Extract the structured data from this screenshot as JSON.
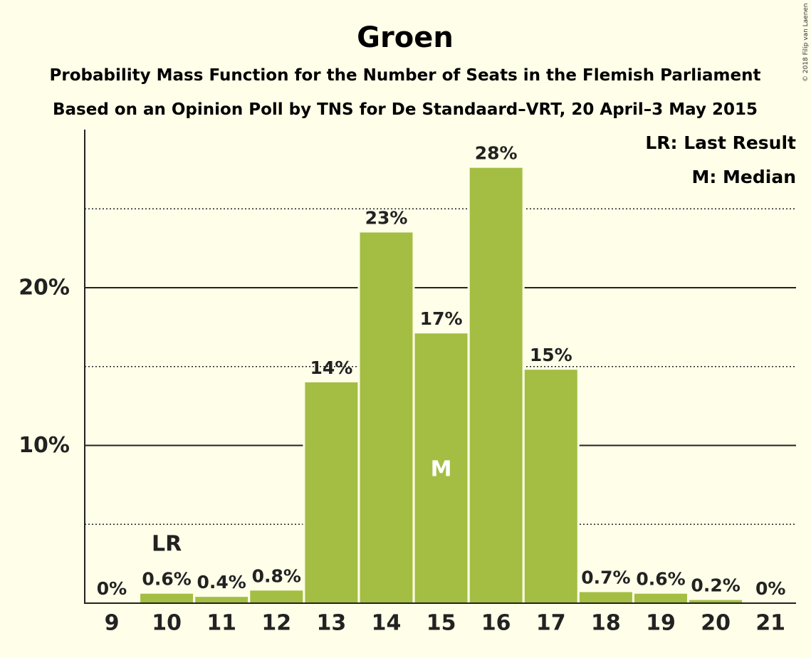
{
  "colors": {
    "background": "#FFFEE8",
    "bar": "#A3BE43",
    "text": "#222222",
    "marker_inside": "#FFFFFF"
  },
  "copyright": "© 2018 Filip van Laenen",
  "chart_data": {
    "type": "bar",
    "title": "Groen",
    "subtitle_lines": [
      "Probability Mass Function for the Number of Seats in the Flemish Parliament",
      "Based on an Opinion Poll by TNS for De Standaard–VRT, 20 April–3 May 2015"
    ],
    "categories": [
      "9",
      "10",
      "11",
      "12",
      "13",
      "14",
      "15",
      "16",
      "17",
      "18",
      "19",
      "20",
      "21"
    ],
    "values": [
      0,
      0.6,
      0.4,
      0.8,
      14,
      23.5,
      17.1,
      27.6,
      14.8,
      0.7,
      0.6,
      0.2,
      0
    ],
    "data_labels": [
      "0%",
      "0.6%",
      "0.4%",
      "0.8%",
      "14%",
      "23%",
      "17%",
      "28%",
      "15%",
      "0.7%",
      "0.6%",
      "0.2%",
      "0%"
    ],
    "y_ticks": [
      {
        "value": 10,
        "label": "10%"
      },
      {
        "value": 20,
        "label": "20%"
      }
    ],
    "minor_gridlines": [
      5,
      15,
      25
    ],
    "ylim": [
      0,
      30
    ],
    "xlabel": "",
    "ylabel": "",
    "grid": true,
    "legend": {
      "placement": "top-right",
      "entries": [
        "LR: Last Result",
        "M: Median"
      ]
    },
    "annotations": [
      {
        "category": "10",
        "text": "LR",
        "position": "above-label"
      },
      {
        "category": "15",
        "text": "M",
        "position": "inside-bar"
      }
    ]
  }
}
